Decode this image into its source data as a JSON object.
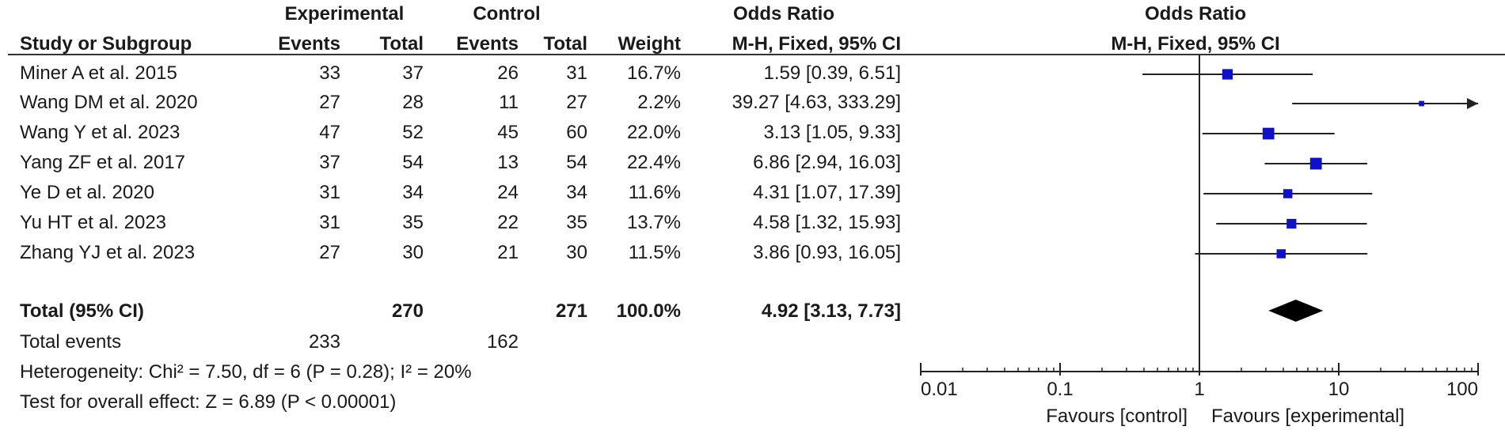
{
  "header": {
    "group_experimental": "Experimental",
    "group_control": "Control",
    "group_or": "Odds Ratio",
    "plot_title": "Odds Ratio",
    "col_study": "Study or Subgroup",
    "col_events_e": "Events",
    "col_total_e": "Total",
    "col_events_c": "Events",
    "col_total_c": "Total",
    "col_weight": "Weight",
    "col_method": "M-H, Fixed, 95% CI",
    "plot_method": "M-H, Fixed, 95% CI"
  },
  "rows": [
    {
      "study": "Miner A et al. 2015",
      "ev_e": "33",
      "tot_e": "37",
      "ev_c": "26",
      "tot_c": "31",
      "weight": "16.7%",
      "ci": "1.59 [0.39, 6.51]"
    },
    {
      "study": "Wang DM et al. 2020",
      "ev_e": "27",
      "tot_e": "28",
      "ev_c": "11",
      "tot_c": "27",
      "weight": "2.2%",
      "ci": "39.27 [4.63, 333.29]"
    },
    {
      "study": "Wang Y et al. 2023",
      "ev_e": "47",
      "tot_e": "52",
      "ev_c": "45",
      "tot_c": "60",
      "weight": "22.0%",
      "ci": "3.13 [1.05, 9.33]"
    },
    {
      "study": "Yang ZF et al. 2017",
      "ev_e": "37",
      "tot_e": "54",
      "ev_c": "13",
      "tot_c": "54",
      "weight": "22.4%",
      "ci": "6.86 [2.94, 16.03]"
    },
    {
      "study": "Ye D et al. 2020",
      "ev_e": "31",
      "tot_e": "34",
      "ev_c": "24",
      "tot_c": "34",
      "weight": "11.6%",
      "ci": "4.31 [1.07, 17.39]"
    },
    {
      "study": "Yu HT et al. 2023",
      "ev_e": "31",
      "tot_e": "35",
      "ev_c": "22",
      "tot_c": "35",
      "weight": "13.7%",
      "ci": "4.58 [1.32, 15.93]"
    },
    {
      "study": "Zhang YJ et al. 2023",
      "ev_e": "27",
      "tot_e": "30",
      "ev_c": "21",
      "tot_c": "30",
      "weight": "11.5%",
      "ci": "3.86 [0.93, 16.05]"
    }
  ],
  "total": {
    "label": "Total (95% CI)",
    "tot_e": "270",
    "tot_c": "271",
    "weight": "100.0%",
    "ci": "4.92 [3.13, 7.73]"
  },
  "events": {
    "label": "Total events",
    "ev_e": "233",
    "ev_c": "162"
  },
  "footer": {
    "heterogeneity": "Heterogeneity: Chi² = 7.50, df = 6 (P = 0.28); I² = 20%",
    "overall": "Test for overall effect: Z = 6.89 (P < 0.00001)"
  },
  "axis": {
    "favours_left": "Favours [control]",
    "favours_right": "Favours [experimental]"
  },
  "chart_data": {
    "type": "forest",
    "scale": "log",
    "xlim": [
      0.01,
      100
    ],
    "ticks": [
      0.01,
      0.1,
      1,
      10,
      100
    ],
    "tick_labels": [
      "0.01",
      "0.1",
      "1",
      "10",
      "100"
    ],
    "null_line": 1,
    "marker_color": "#1010c8",
    "studies": [
      {
        "name": "Miner A et al. 2015",
        "or": 1.59,
        "lo": 0.39,
        "hi": 6.51,
        "weight": 16.7
      },
      {
        "name": "Wang DM et al. 2020",
        "or": 39.27,
        "lo": 4.63,
        "hi": 333.29,
        "weight": 2.2
      },
      {
        "name": "Wang Y et al. 2023",
        "or": 3.13,
        "lo": 1.05,
        "hi": 9.33,
        "weight": 22.0
      },
      {
        "name": "Yang ZF et al. 2017",
        "or": 6.86,
        "lo": 2.94,
        "hi": 16.03,
        "weight": 22.4
      },
      {
        "name": "Ye D et al. 2020",
        "or": 4.31,
        "lo": 1.07,
        "hi": 17.39,
        "weight": 11.6
      },
      {
        "name": "Yu HT et al. 2023",
        "or": 4.58,
        "lo": 1.32,
        "hi": 15.93,
        "weight": 13.7
      },
      {
        "name": "Zhang YJ et al. 2023",
        "or": 3.86,
        "lo": 0.93,
        "hi": 16.05,
        "weight": 11.5
      }
    ],
    "pooled": {
      "or": 4.92,
      "lo": 3.13,
      "hi": 7.73
    }
  }
}
